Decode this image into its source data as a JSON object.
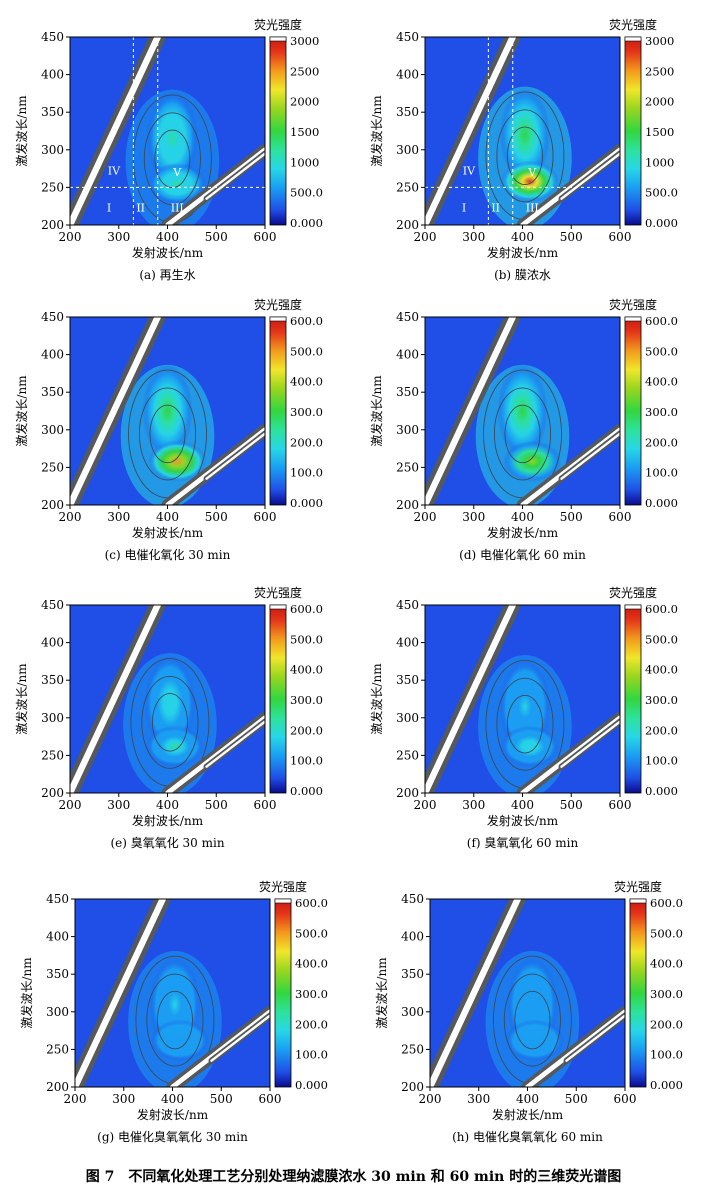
{
  "figure": {
    "caption": "图 7　不同氧化处理工艺分别处理纳滤膜浓水 30 min 和 60 min 时的三维荧光谱图"
  },
  "colors": {
    "bg_blue": "#1f4fe6",
    "scatter_band": "#55595c",
    "contour_line": "#3c4a5c",
    "guide_line": "#ffffff"
  },
  "chart_data": [
    {
      "type": "heatmap",
      "id": "a",
      "subtitle": "(a) 再生水",
      "xlabel": "发射波长/nm",
      "ylabel": "激发波长/nm",
      "xlim": [
        200,
        600
      ],
      "ylim": [
        200,
        450
      ],
      "xticks": [
        "200",
        "300",
        "400",
        "500",
        "600"
      ],
      "yticks": [
        "200",
        "250",
        "300",
        "350",
        "400",
        "450"
      ],
      "colorbar": {
        "title": "荧光强度",
        "min": 0,
        "max": 3000,
        "ticks": [
          "0.000",
          "500.0",
          "1000",
          "1500",
          "2000",
          "2500",
          "3000"
        ]
      },
      "peaks": [
        {
          "ex": 315,
          "em": 410,
          "intensity": 1000
        },
        {
          "ex": 255,
          "em": 420,
          "intensity": 1050
        }
      ],
      "regions": [
        {
          "label": "I",
          "em": 280,
          "ex": 218
        },
        {
          "label": "II",
          "em": 345,
          "ex": 218
        },
        {
          "label": "III",
          "em": 420,
          "ex": 218
        },
        {
          "label": "IV",
          "em": 290,
          "ex": 267
        },
        {
          "label": "V",
          "em": 420,
          "ex": 265
        }
      ],
      "guides": {
        "em": [
          330,
          380
        ],
        "ex": [
          250
        ]
      }
    },
    {
      "type": "heatmap",
      "id": "b",
      "subtitle": "(b) 膜浓水",
      "xlabel": "发射波长/nm",
      "ylabel": "激发波长/nm",
      "xlim": [
        200,
        600
      ],
      "ylim": [
        200,
        450
      ],
      "xticks": [
        "200",
        "300",
        "400",
        "500",
        "600"
      ],
      "yticks": [
        "200",
        "250",
        "300",
        "350",
        "400",
        "450"
      ],
      "colorbar": {
        "title": "荧光强度",
        "min": 0,
        "max": 3000,
        "ticks": [
          "0.000",
          "500.0",
          "1000",
          "1500",
          "2000",
          "2500",
          "3000"
        ]
      },
      "peaks": [
        {
          "ex": 320,
          "em": 405,
          "intensity": 1500
        },
        {
          "ex": 258,
          "em": 415,
          "intensity": 2500
        }
      ],
      "regions": [
        {
          "label": "I",
          "em": 280,
          "ex": 218
        },
        {
          "label": "II",
          "em": 345,
          "ex": 218
        },
        {
          "label": "III",
          "em": 420,
          "ex": 218
        },
        {
          "label": "IV",
          "em": 290,
          "ex": 267
        },
        {
          "label": "V",
          "em": 420,
          "ex": 265
        }
      ],
      "guides": {
        "em": [
          330,
          380
        ],
        "ex": [
          250
        ]
      }
    },
    {
      "type": "heatmap",
      "id": "c",
      "subtitle": "(c) 电催化氧化 30 min",
      "xlabel": "发射波长/nm",
      "ylabel": "激发波长/nm",
      "xlim": [
        200,
        600
      ],
      "ylim": [
        200,
        450
      ],
      "xticks": [
        "200",
        "300",
        "400",
        "500",
        "600"
      ],
      "yticks": [
        "200",
        "250",
        "300",
        "350",
        "400",
        "450"
      ],
      "colorbar": {
        "title": "荧光强度",
        "min": 0,
        "max": 600,
        "ticks": [
          "0.000",
          "100.0",
          "200.0",
          "300.0",
          "400.0",
          "500.0",
          "600.0"
        ]
      },
      "peaks": [
        {
          "ex": 325,
          "em": 400,
          "intensity": 290
        },
        {
          "ex": 258,
          "em": 420,
          "intensity": 480
        }
      ]
    },
    {
      "type": "heatmap",
      "id": "d",
      "subtitle": "(d) 电催化氧化 60 min",
      "xlabel": "发射波长/nm",
      "ylabel": "激发波长/nm",
      "xlim": [
        200,
        600
      ],
      "ylim": [
        200,
        450
      ],
      "xticks": [
        "200",
        "300",
        "400",
        "500",
        "600"
      ],
      "yticks": [
        "200",
        "250",
        "300",
        "350",
        "400",
        "450"
      ],
      "colorbar": {
        "title": "荧光强度",
        "min": 0,
        "max": 600,
        "ticks": [
          "0.000",
          "100.0",
          "200.0",
          "300.0",
          "400.0",
          "500.0",
          "600.0"
        ]
      },
      "peaks": [
        {
          "ex": 325,
          "em": 400,
          "intensity": 260
        },
        {
          "ex": 258,
          "em": 420,
          "intensity": 330
        }
      ]
    },
    {
      "type": "heatmap",
      "id": "e",
      "subtitle": "(e) 臭氧氧化 30 min",
      "xlabel": "发射波长/nm",
      "ylabel": "激发波长/nm",
      "xlim": [
        200,
        600
      ],
      "ylim": [
        200,
        450
      ],
      "xticks": [
        "200",
        "300",
        "400",
        "500",
        "600"
      ],
      "yticks": [
        "200",
        "250",
        "300",
        "350",
        "400",
        "450"
      ],
      "colorbar": {
        "title": "荧光强度",
        "min": 0,
        "max": 600,
        "ticks": [
          "0.000",
          "100.0",
          "200.0",
          "300.0",
          "400.0",
          "500.0",
          "600.0"
        ]
      },
      "peaks": [
        {
          "ex": 320,
          "em": 405,
          "intensity": 180
        },
        {
          "ex": 262,
          "em": 415,
          "intensity": 190
        }
      ]
    },
    {
      "type": "heatmap",
      "id": "f",
      "subtitle": "(f) 臭氧氧化 60 min",
      "xlabel": "发射波长/nm",
      "ylabel": "激发波长/nm",
      "xlim": [
        200,
        600
      ],
      "ylim": [
        200,
        450
      ],
      "xticks": [
        "200",
        "300",
        "400",
        "500",
        "600"
      ],
      "yticks": [
        "200",
        "250",
        "300",
        "350",
        "400",
        "450"
      ],
      "colorbar": {
        "title": "荧光强度",
        "min": 0,
        "max": 600,
        "ticks": [
          "0.000",
          "100.0",
          "200.0",
          "300.0",
          "400.0",
          "500.0",
          "600.0"
        ]
      },
      "peaks": [
        {
          "ex": 315,
          "em": 405,
          "intensity": 140
        },
        {
          "ex": 262,
          "em": 415,
          "intensity": 160
        }
      ]
    },
    {
      "type": "heatmap",
      "id": "g",
      "subtitle": "(g) 电催化臭氧氧化 30 min",
      "xlabel": "发射波长/nm",
      "ylabel": "激发波长/nm",
      "xlim": [
        200,
        600
      ],
      "ylim": [
        200,
        450
      ],
      "xticks": [
        "200",
        "300",
        "400",
        "500",
        "600"
      ],
      "yticks": [
        "200",
        "250",
        "300",
        "350",
        "400",
        "450"
      ],
      "colorbar": {
        "title": "荧光强度",
        "min": 0,
        "max": 600,
        "ticks": [
          "0.000",
          "100.0",
          "200.0",
          "300.0",
          "400.0",
          "500.0",
          "600.0"
        ]
      },
      "peaks": [
        {
          "ex": 310,
          "em": 405,
          "intensity": 130
        },
        {
          "ex": 262,
          "em": 415,
          "intensity": 120
        }
      ]
    },
    {
      "type": "heatmap",
      "id": "h",
      "subtitle": "(h) 电催化臭氧氧化 60 min",
      "xlabel": "发射波长/nm",
      "ylabel": "激发波长/nm",
      "xlim": [
        200,
        600
      ],
      "ylim": [
        200,
        450
      ],
      "xticks": [
        "200",
        "300",
        "400",
        "500",
        "600"
      ],
      "yticks": [
        "200",
        "250",
        "300",
        "350",
        "400",
        "450"
      ],
      "colorbar": {
        "title": "荧光强度",
        "min": 0,
        "max": 600,
        "ticks": [
          "0.000",
          "100.0",
          "200.0",
          "300.0",
          "400.0",
          "500.0",
          "600.0"
        ]
      },
      "peaks": [
        {
          "ex": 310,
          "em": 410,
          "intensity": 110
        },
        {
          "ex": 262,
          "em": 415,
          "intensity": 105
        }
      ]
    }
  ]
}
